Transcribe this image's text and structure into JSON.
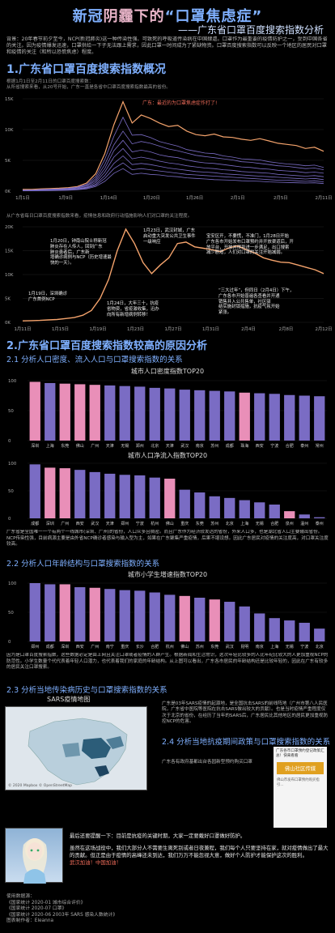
{
  "header": {
    "title_part1": "新冠",
    "title_part2": "阴霾下的",
    "title_part3": "“口罩焦虑症”",
    "subtitle": "——广东省口罩百度搜索指数分析"
  },
  "intro": "背景：20年春节前夕至今，NCP(新冠肺炎)这一种传染性强、可致死的呼吸道传染病在中国肆虐。口罩作为最重要的疫情防护之一，受到中国各省的关注。因为疫情爆发迅速，口罩供给一下子无法跟上需求，因此口罩一时间成为了紧缺物资。口罩百度搜索指数可以反映一个地区的居民对口罩和疫情的关注（和所以恐慌焦虑）程度。",
  "section1": {
    "heading": "1.广东省口罩百度搜索指数概况",
    "desc": "根据1月1日至2月11日的口罩百度搜索数：\n从所省搜索来看，从20号开始，广东一直是各省中口罩百度搜索指数最高的省份。",
    "annotation": "广东：最近的为口罩焦虑症作打了!",
    "note": "从广东省每日口罩百度搜索指数来看，疫情信息和政府行动措施影响人们对口罩的关注程度。"
  },
  "section2": {
    "heading": "2.广东省口罩百度搜索指数较高的原因分析",
    "sub1": "2.1 分析人口密度、流入人口与口罩搜索指数的关系",
    "para1": "广东省是全国唯一一个有两个一线城市(深圳、广州)的省份，人口众多且稠密。而且广东作为经济较发达的省份，外来人口多，也是湖北省人口主要输出省份。NCP传染性强，目前病源主要是由外省NCP确诊者感染与输入型为主，如果在广东聚集严重疫情，后果不堪设想。因此广东居民对疫情的关注度高，对口罩关注度较高。",
    "sub2": "2.2 分析人口年龄结构与口罩搜索指数的关系",
    "para2": "因为是口罩百度搜索指数，这些数据必定是由上网且关注口罩或者疫情的人群产生。根据新闻和生活常识，这次年轻比较多的人比年纪比较大的人更加重视NCP的防范性。小学生数量个代代表着年轻人口潜力，也代表着我们的家庭的年龄结构。从上图可以看出，广东各市居民的年龄结构还是比较年轻的，因此在广东有较多的居民关注口罩搜索。",
    "sub3": "2.3 分析当地传染病历史与口罩搜索指数的关系",
    "map_title": "SARS疫情地图",
    "map_credit": "© 2020 Mapbox © OpenStreetMap",
    "sars_text": "广东是03年SARS疫情的起源地，是全国抗击SARS的前线阵地（广州市第八人民医院，广东省中医院等医院在抗击SARS做出较大的贡献）。也是当时疫情严重程度仅次于北京的省份，在经历了当年的SARS后，广东居民比其他地区的居民更加重视防控NCP的危害。",
    "sub4": "2.4 分析当地抗疫期间政策与口罩搜索指数的关系",
    "policy_text": "广东各有政府基都出台各园新型预约购买口罩",
    "news_title": "广东各市口罩预约登记政策汇总！快来看看",
    "news_banner": "佛山社区传媒",
    "news_line": "佛山市发布口罩预约购买指引..."
  },
  "final": {
    "line1": "最后还要提醒一下：目前是抗疫的关键时期，大家一定要戴好口罩做好防护。",
    "line2": "虽然在这场战役中，我们大部分人不需要生离死别或者日夜兼程，我们每个人只要坚持在家，就对疫情做出了最大的贡献。但正是由于疫情的高峰还未到达，我们万万不能忽视大意，做好个人防护才能保护这次的胜利。",
    "line3": "武汉加油！中国加油！"
  },
  "sources": {
    "heading": "使用数据源：",
    "items": [
      "《国家统计 2020-01 城市综合评价》",
      "《国家统计 2020-07 口罩》",
      "《国家统计 2020-06 2003年 SARS 感染人数统计》"
    ],
    "author": "图表制作者：Eleanna"
  },
  "colors": {
    "purple": "#7a6cc4",
    "pink": "#e98fb8",
    "line_orange": "#f4a36c",
    "accent_blue": "#7fb0ff"
  },
  "chart_data": [
    {
      "type": "line",
      "title": "",
      "x_ticks": [
        "1月1日",
        "1月9日",
        "1月14日",
        "1月20日",
        "1月26日",
        "2月1日",
        "2月5日",
        "2月11日"
      ],
      "y_ticks": [
        "0K",
        "5K",
        "10K",
        "15K"
      ],
      "ylim": [
        0,
        16000
      ],
      "series": [
        {
          "values": [
            300,
            300,
            400,
            450,
            500,
            600,
            800,
            1400,
            3000,
            6500,
            11500,
            15500,
            11800,
            13200,
            12600,
            11800,
            11200,
            11400,
            10400,
            9800,
            9600,
            9900,
            9400,
            9300,
            9000,
            8800,
            9100,
            8700,
            8300,
            8100,
            7900,
            7400,
            7600,
            6900
          ]
        },
        {
          "values": [
            200,
            200,
            300,
            350,
            400,
            500,
            700,
            1200,
            2500,
            5500,
            9500,
            12800,
            9700,
            9800,
            9300,
            8600,
            8200,
            7800,
            7200,
            6900,
            6600,
            6500,
            6100,
            5900,
            5600,
            5500,
            5400,
            5100,
            4900,
            4700,
            4600,
            4400,
            4500,
            4100
          ]
        },
        {
          "values": [
            150,
            200,
            250,
            300,
            350,
            450,
            600,
            1000,
            2100,
            4600,
            8000,
            10400,
            8200,
            8600,
            8300,
            7800,
            7300,
            7000,
            6600,
            6200,
            6000,
            5800,
            5600,
            5400,
            5100,
            5000,
            4800,
            4600,
            4400,
            4300,
            4100,
            3900,
            4000,
            3700
          ]
        },
        {
          "values": [
            100,
            150,
            200,
            250,
            300,
            400,
            500,
            900,
            1800,
            3900,
            7000,
            8800,
            6800,
            7100,
            6800,
            6300,
            6000,
            5800,
            5400,
            5100,
            4900,
            4800,
            4600,
            4400,
            4200,
            4100,
            3900,
            3800,
            3600,
            3500,
            3400,
            3200,
            3300,
            3100
          ]
        },
        {
          "values": [
            100,
            100,
            150,
            200,
            250,
            300,
            400,
            700,
            1500,
            3300,
            5900,
            7400,
            5600,
            5900,
            5600,
            5200,
            4900,
            4700,
            4400,
            4200,
            4000,
            3900,
            3700,
            3600,
            3400,
            3300,
            3200,
            3100,
            2900,
            2800,
            2700,
            2600,
            2700,
            2500
          ]
        },
        {
          "values": [
            80,
            80,
            120,
            150,
            200,
            250,
            350,
            600,
            1200,
            2700,
            4800,
            6100,
            4600,
            4800,
            4600,
            4300,
            4000,
            3800,
            3600,
            3400,
            3300,
            3200,
            3000,
            2900,
            2800,
            2700,
            2600,
            2500,
            2400,
            2300,
            2200,
            2100,
            2200,
            2000
          ]
        },
        {
          "values": [
            60,
            60,
            100,
            120,
            150,
            200,
            300,
            500,
            1000,
            2200,
            3900,
            4900,
            3700,
            3900,
            3700,
            3500,
            3300,
            3100,
            2900,
            2800,
            2700,
            2600,
            2500,
            2400,
            2300,
            2200,
            2100,
            2000,
            1900,
            1900,
            1800,
            1700,
            1800,
            1600
          ]
        },
        {
          "values": [
            50,
            50,
            80,
            100,
            120,
            150,
            250,
            400,
            800,
            1700,
            3100,
            3900,
            2900,
            3100,
            2900,
            2800,
            2600,
            2500,
            2300,
            2200,
            2100,
            2000,
            1950,
            1900,
            1800,
            1750,
            1700,
            1600,
            1550,
            1500,
            1450,
            1400,
            1450,
            1300
          ]
        }
      ]
    },
    {
      "type": "line",
      "title": "",
      "x_ticks": [
        "1月11日",
        "1月15日",
        "1月19日",
        "1月23日",
        "1月27日",
        "1月31日",
        "2月4日",
        "2月8日",
        "2月12日"
      ],
      "y_ticks": [
        "0K",
        "5K",
        "10K",
        "15K",
        "20K"
      ],
      "ylim": [
        0,
        20000
      ],
      "series": [
        {
          "name": "广东",
          "values": [
            300,
            350,
            400,
            500,
            600,
            800,
            1000,
            1500,
            2500,
            5000,
            9000,
            15000,
            19500,
            16500,
            12500,
            10200,
            12000,
            13500,
            16500,
            16800,
            15800,
            15500,
            15200,
            14800,
            15600,
            16000,
            15200,
            14500,
            13500,
            13000,
            12600,
            12500,
            12000,
            11500,
            11000,
            10200
          ]
        }
      ],
      "annotations": [
        "1月19日，深圳确诊\n广东首例NCP",
        "1月20日，钟南山院士称新冠\n肺炎存在人传人，回到广东\n肺炎患者后，广东新\n增确诊病例与NCP（历史增速最\n快的一天）。",
        "1月23日，武汉封城，广东\n启动重大突发公共卫生事件\n一级响应",
        "1月24日，大年三十，抗疫\n省物资，省疫激收集，迅办\n向所有新增病例转移！",
        "宝安区开，不要慌，不准门，1月28日开始\n广东各市开始发布口罩预约并开放渠道后，开\n放平台，开放并得到进一步满足，出口搜索\n减少剧增，人们对口罩的关注开始减弱。",
        "“三大过年”，但同日（2月4日）下午，\n广东各市开始普遍各查看并开通\n销售并入公共售单，社区驿\n结实施封锁措施，抗疫气氛开始\n紧张。"
      ]
    },
    {
      "type": "bar",
      "title": "城市人口密度指数TOP20",
      "categories": [
        "深圳",
        "上海",
        "东莞",
        "佛山",
        "广州",
        "天津",
        "无锡",
        "郑州",
        "北京",
        "天津",
        "武汉",
        "南京",
        "苏州",
        "成都",
        "珠海",
        "西安",
        "宁波",
        "合肥",
        "泰州",
        "常州"
      ],
      "values": [
        98,
        96,
        95,
        94,
        93,
        92,
        91,
        90,
        88,
        87,
        85,
        84,
        83,
        82,
        80,
        79,
        78,
        76,
        75,
        74
      ],
      "highlight": [
        true,
        false,
        true,
        true,
        true,
        false,
        false,
        false,
        false,
        false,
        false,
        false,
        false,
        false,
        true,
        false,
        false,
        false,
        false,
        false
      ]
    },
    {
      "type": "bar",
      "title": "城市人口净流入指数TOP20",
      "categories": [
        "成都",
        "深圳",
        "广州",
        "西安",
        "武汉",
        "天津",
        "郑州",
        "宁波",
        "杭州",
        "佛山",
        "重庆",
        "东莞",
        "苏州",
        "北京",
        "上海",
        "无锡",
        "合肥",
        "泉州",
        "温州",
        "泰州"
      ],
      "values": [
        98,
        92,
        91,
        88,
        84,
        81,
        79,
        78,
        74,
        72,
        52,
        47,
        40,
        37,
        33,
        29,
        25,
        13,
        7,
        2
      ],
      "highlight": [
        false,
        true,
        true,
        false,
        false,
        false,
        false,
        false,
        false,
        true,
        false,
        false,
        false,
        false,
        false,
        false,
        false,
        true,
        false,
        false
      ]
    },
    {
      "type": "bar",
      "title": "城市小学生增速指数TOP20",
      "categories": [
        "郑州",
        "成都",
        "深圳",
        "西安",
        "广州",
        "南宁",
        "重庆",
        "长沙",
        "合肥",
        "杭州",
        "佛山",
        "苏州",
        "东莞",
        "武汉",
        "昆明",
        "南京",
        "上海",
        "无锡",
        "宁波",
        "北京"
      ],
      "values": [
        100,
        98,
        98,
        93,
        92,
        90,
        88,
        87,
        84,
        80,
        78,
        75,
        72,
        68,
        60,
        48,
        40,
        36,
        32,
        22
      ],
      "highlight": [
        false,
        false,
        true,
        false,
        true,
        false,
        false,
        false,
        false,
        false,
        true,
        false,
        true,
        false,
        false,
        false,
        false,
        false,
        false,
        false
      ]
    }
  ]
}
